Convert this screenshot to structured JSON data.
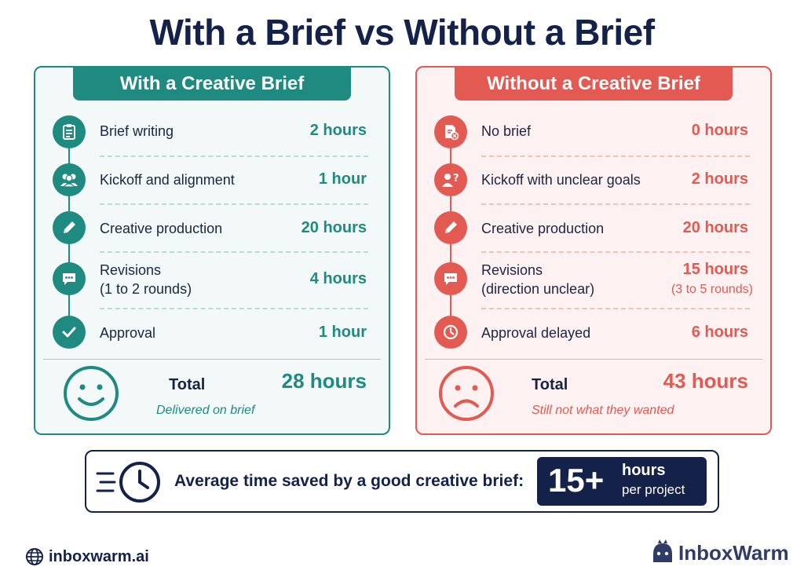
{
  "title": "With a Brief vs Without a Brief",
  "with_brief": {
    "heading": "With a Creative Brief",
    "rows": [
      {
        "label": "Brief writing",
        "value": "2 hours",
        "icon": "clipboard-icon"
      },
      {
        "label": "Kickoff and alignment",
        "value": "1 hour",
        "icon": "team-icon"
      },
      {
        "label": "Creative production",
        "value": "20 hours",
        "icon": "pencil-icon"
      },
      {
        "label": "Revisions",
        "label2": "(1 to 2 rounds)",
        "value": "4 hours",
        "icon": "chat-icon"
      },
      {
        "label": "Approval",
        "value": "1 hour",
        "icon": "checkmark-icon"
      }
    ],
    "total_label": "Total",
    "total_value": "28 hours",
    "note": "Delivered on brief",
    "face": "smiley-face-icon"
  },
  "without_brief": {
    "heading": "Without a Creative Brief",
    "rows": [
      {
        "label": "No brief",
        "value": "0 hours",
        "icon": "document-x-icon"
      },
      {
        "label": "Kickoff with unclear goals",
        "value": "2 hours",
        "icon": "person-question-icon"
      },
      {
        "label": "Creative production",
        "value": "20 hours",
        "icon": "pencil-icon"
      },
      {
        "label": "Revisions",
        "label2": "(direction unclear)",
        "value": "15 hours",
        "sub": "(3 to 5 rounds)",
        "icon": "chat-icon"
      },
      {
        "label": "Approval delayed",
        "value": "6 hours",
        "icon": "clock-icon"
      }
    ],
    "total_label": "Total",
    "total_value": "43 hours",
    "note": "Still not what they wanted",
    "face": "sad-face-icon"
  },
  "savings": {
    "text": "Average time saved by a good creative brief:",
    "value": "15+",
    "unit_line1": "hours",
    "unit_line2": "per project"
  },
  "footer": {
    "website": "inboxwarm.ai",
    "brand": "InboxWarm"
  },
  "colors": {
    "teal": "#1f8a80",
    "red": "#e35a52",
    "navy": "#14224a"
  }
}
